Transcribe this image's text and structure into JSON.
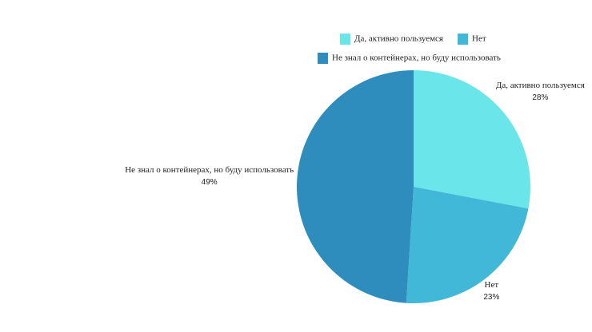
{
  "chart_data": {
    "type": "pie",
    "categories": [
      "Да, активно пользуемся",
      "Нет",
      "Не знал о контейнерах, но буду использовать"
    ],
    "values": [
      28,
      23,
      49
    ],
    "value_labels": [
      "28%",
      "23%",
      "49%"
    ],
    "colors": [
      "#6ae6ea",
      "#42b8d8",
      "#2e8dbd"
    ],
    "legend": "top"
  }
}
